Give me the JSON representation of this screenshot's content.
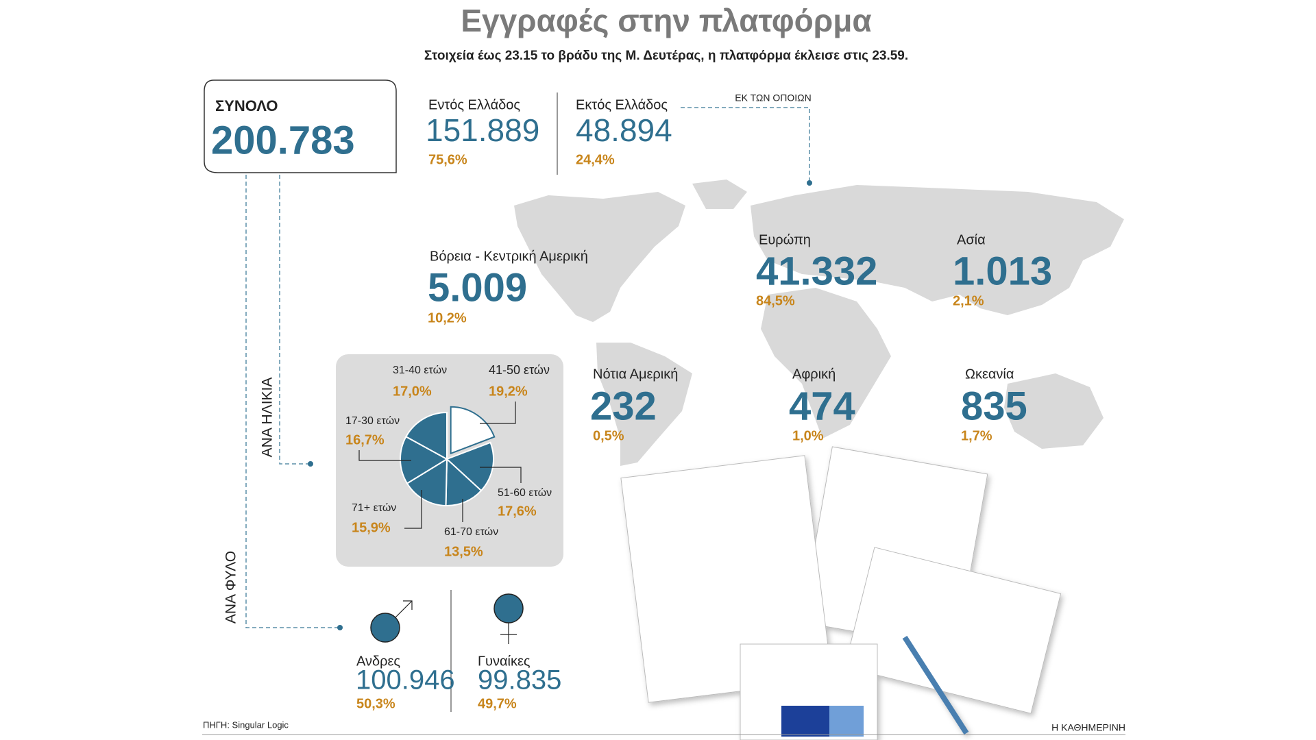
{
  "header": {
    "title": "Εγγραφές στην πλατφόρμα",
    "subtitle": "Στοιχεία έως 23.15 το βράδυ της Μ. Δευτέρας, η πλατφόρμα έκλεισε στις 23.59."
  },
  "total": {
    "label": "ΣΥΝΟΛΟ",
    "value": "200.783"
  },
  "domestic": {
    "label": "Εντός Ελλάδος",
    "value": "151.889",
    "share": "75,6%"
  },
  "abroad": {
    "label": "Εκτός Ελλάδος",
    "value": "48.894",
    "share": "24,4%",
    "note": "ΕΚ ΤΩΝ ΟΠΟΙΩΝ"
  },
  "regions": [
    {
      "label": "Βόρεια - Κεντρική Αμερική",
      "value": "5.009",
      "share": "10,2%"
    },
    {
      "label": "Ευρώπη",
      "value": "41.332",
      "share": "84,5%"
    },
    {
      "label": "Ασία",
      "value": "1.013",
      "share": "2,1%"
    },
    {
      "label": "Νότια Αμερική",
      "value": "232",
      "share": "0,5%"
    },
    {
      "label": "Αφρική",
      "value": "474",
      "share": "1,0%"
    },
    {
      "label": "Ωκεανία",
      "value": "835",
      "share": "1,7%"
    }
  ],
  "sections": {
    "age": "ΑΝΑ ΗΛΙΚΙΑ",
    "gender": "ΑΝΑ ΦΥΛΟ"
  },
  "chart_data": {
    "type": "pie",
    "categories": [
      "41-50 ετών",
      "51-60 ετών",
      "61-70 ετών",
      "71+ ετών",
      "17-30 ετών",
      "31-40 ετών"
    ],
    "values": [
      19.2,
      17.6,
      13.5,
      15.9,
      16.7,
      17.0
    ],
    "value_labels": [
      "19,2%",
      "17,6%",
      "13,5%",
      "15,9%",
      "16,7%",
      "17,0%"
    ],
    "colors": [
      "#ffffff",
      "#2f6f8f",
      "#2f6f8f",
      "#2f6f8f",
      "#2f6f8f",
      "#2f6f8f"
    ]
  },
  "gender": [
    {
      "label": "Ανδρες",
      "value": "100.946",
      "share": "50,3%"
    },
    {
      "label": "Γυναίκες",
      "value": "99.835",
      "share": "49,7%"
    }
  ],
  "footer": {
    "source": "ΠΗΓΗ: Singular Logic",
    "brand": "Η ΚΑΘΗΜΕΡΙΝΗ"
  }
}
